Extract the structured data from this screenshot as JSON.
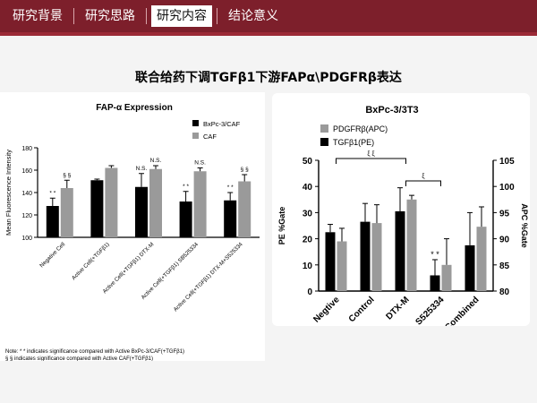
{
  "nav": {
    "tabs": [
      {
        "label": "研究背景"
      },
      {
        "label": "研究思路"
      },
      {
        "label": "研究内容"
      },
      {
        "label": "结论意义"
      }
    ],
    "active_index": 2
  },
  "slide_title": "联合给药下调TGFβ1下游FAPα\\PDGFRβ表达",
  "chart_data": [
    {
      "type": "bar",
      "title": "FAP-α Expression",
      "ylabel": "Mean Fluorescence Intensity",
      "xlabel": "",
      "ylim": [
        100,
        180
      ],
      "yticks": [
        100,
        120,
        140,
        160,
        180
      ],
      "categories": [
        "Negative Cell",
        "Active Cell(+TGFβ1)",
        "Active Cell(+TGFβ1) DTX-M",
        "Active Cell(+TGFβ1) SB525334",
        "Active Cell(+TGFβ1) DTX-M+S525334"
      ],
      "series": [
        {
          "name": "BxPc-3/CAF",
          "color": "#000000",
          "values": [
            128,
            151,
            145,
            132,
            133
          ],
          "errors": [
            7,
            1,
            12,
            9,
            7
          ]
        },
        {
          "name": "CAF",
          "color": "#9a9a9a",
          "values": [
            144,
            162,
            161,
            159,
            150
          ],
          "errors": [
            7,
            2,
            3,
            3,
            6
          ]
        }
      ],
      "annotations": [
        {
          "category": 0,
          "series": 0,
          "text": "* *"
        },
        {
          "category": 0,
          "series": 1,
          "text": "§ §"
        },
        {
          "category": 2,
          "series": 0,
          "text": "N.S."
        },
        {
          "category": 2,
          "series": 1,
          "text": "N.S."
        },
        {
          "category": 3,
          "series": 0,
          "text": "* *"
        },
        {
          "category": 3,
          "series": 1,
          "text": "N.S."
        },
        {
          "category": 4,
          "series": 0,
          "text": "* *"
        },
        {
          "category": 4,
          "series": 1,
          "text": "§ §"
        }
      ],
      "legend": "top-right",
      "notes": [
        "Note: * * indicates significance compared with Active BxPc-3/CAF(+TGFβ1)",
        "§ § indicates significance compared with Active CAF(+TGFβ1)"
      ]
    },
    {
      "type": "bar",
      "title": "BxPc-3/3T3",
      "ylabel": "PE %Gate",
      "y2label": "APC %Gate",
      "xlabel": "",
      "ylim": [
        0,
        50
      ],
      "yticks": [
        0,
        10,
        20,
        30,
        40,
        50
      ],
      "y2lim": [
        80,
        105
      ],
      "y2ticks": [
        80,
        85,
        90,
        95,
        100,
        105
      ],
      "categories": [
        "Negtive",
        "Control",
        "DTX-M",
        "S525334",
        "Combined"
      ],
      "series": [
        {
          "name": "TGFβ1(PE)",
          "color": "#000000",
          "axis": "left",
          "values": [
            22.5,
            26.5,
            30.5,
            6,
            17.5
          ],
          "errors": [
            3,
            7,
            9,
            6,
            12.5
          ]
        },
        {
          "name": "PDGFRβ(APC)",
          "color": "#9a9a9a",
          "axis": "right",
          "values": [
            89.5,
            93,
            97.5,
            85,
            92.3
          ],
          "errors": [
            2.5,
            3.5,
            0.8,
            5,
            3.8
          ]
        }
      ],
      "annotations": [
        {
          "category": 3,
          "series": 0,
          "text": "* *"
        }
      ],
      "brackets": [
        {
          "from": 0,
          "to": 2,
          "text": "ξ ξ"
        },
        {
          "from": 2,
          "to": 3,
          "text": "ξ"
        }
      ],
      "legend": "top-left"
    }
  ]
}
